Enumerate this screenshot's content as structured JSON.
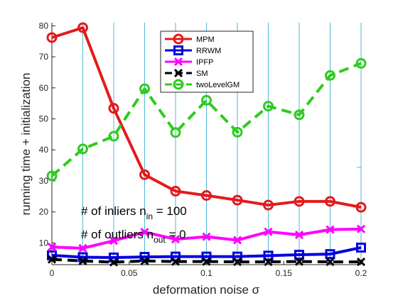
{
  "chart_data": {
    "type": "line",
    "xlabel": "deformation noise σ",
    "ylabel": "running time + initialization",
    "xlim": [
      0,
      0.2
    ],
    "ylim": [
      3,
      81
    ],
    "grid": false,
    "legend_position": "top-center",
    "x": [
      0,
      0.02,
      0.04,
      0.06,
      0.08,
      0.1,
      0.12,
      0.14,
      0.16,
      0.18,
      0.2
    ],
    "x_ticks": [
      0,
      0.05,
      0.1,
      0.15,
      0.2
    ],
    "x_tick_labels": [
      "0",
      "0.05",
      "0.1",
      "0.15",
      "0.2"
    ],
    "y_ticks": [
      10,
      20,
      30,
      40,
      50,
      60,
      70,
      80
    ],
    "y_tick_labels": [
      "10",
      "20",
      "30",
      "40",
      "50",
      "60",
      "70",
      "80"
    ],
    "series": [
      {
        "name": "MPM",
        "color": "#e41a1c",
        "marker": "circle",
        "dash": "solid",
        "values": [
          76.2,
          79.4,
          53.4,
          32.0,
          26.7,
          25.3,
          23.8,
          22.2,
          23.4,
          23.4,
          21.5
        ]
      },
      {
        "name": "RRWM",
        "color": "#0000e0",
        "marker": "square",
        "dash": "solid",
        "values": [
          6.0,
          5.4,
          5.3,
          5.5,
          5.6,
          5.6,
          5.6,
          5.9,
          6.2,
          6.4,
          8.5
        ]
      },
      {
        "name": "IPFP",
        "color": "#ff00ff",
        "marker": "x",
        "dash": "solid",
        "values": [
          8.7,
          8.3,
          10.7,
          13.5,
          11.2,
          12.0,
          10.9,
          13.6,
          12.6,
          14.3,
          14.5
        ]
      },
      {
        "name": "SM",
        "color": "#000000",
        "marker": "x",
        "dash": "dashed",
        "values": [
          4.7,
          4.2,
          3.8,
          4.2,
          4.0,
          4.0,
          3.9,
          3.9,
          4.0,
          3.9,
          3.9
        ]
      },
      {
        "name": "twoLevelGM",
        "color": "#2ecc1e",
        "marker": "circle",
        "dash": "dashed",
        "values": [
          31.6,
          40.3,
          44.4,
          59.7,
          45.6,
          56.0,
          45.7,
          54.1,
          51.3,
          64.0,
          67.9
        ]
      }
    ],
    "annotations": {
      "inliers_prefix": "# of inliers n",
      "inliers_sub": "in",
      "inliers_value": " = 100",
      "outliers_prefix": "# of outliers n",
      "outliers_sub": "out",
      "outliers_value": " = 0"
    }
  }
}
